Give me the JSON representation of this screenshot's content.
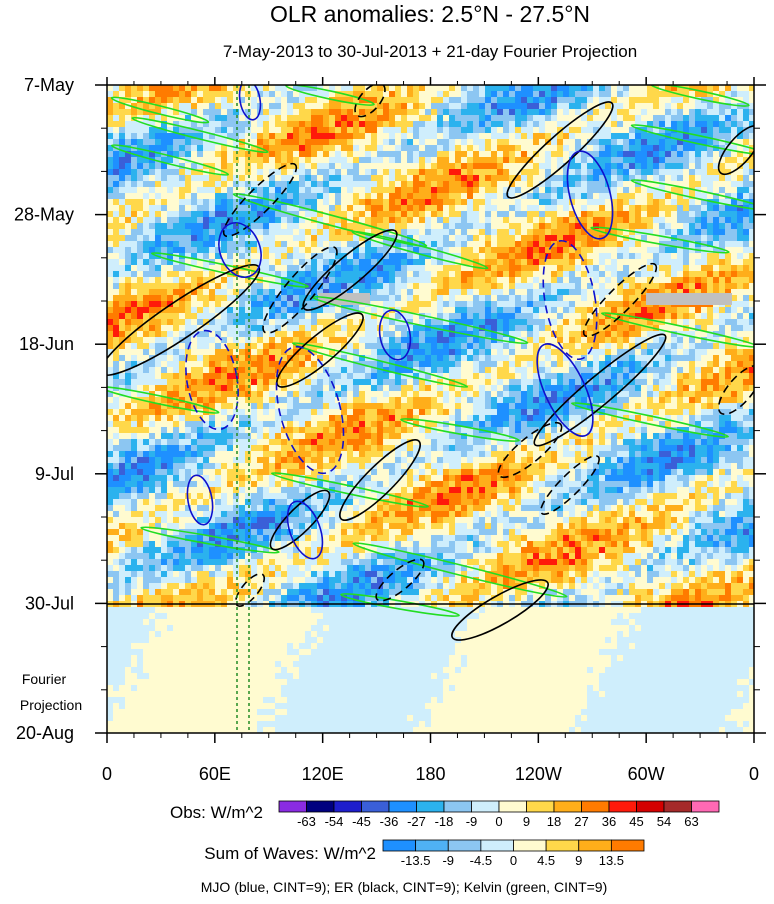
{
  "chart_data": {
    "type": "heatmap",
    "title": "OLR anomalies: 2.5°N - 27.5°N",
    "subtitle": "7-May-2013 to 30-Jul-2013 + 21-day Fourier Projection",
    "x_ticks": [
      "0",
      "60E",
      "120E",
      "180",
      "120W",
      "60W",
      "0"
    ],
    "x_range": [
      0,
      360
    ],
    "y_ticks": [
      "7-May",
      "28-May",
      "18-Jun",
      "9-Jul",
      "30-Jul",
      "20-Aug"
    ],
    "y_range_days": [
      0,
      105
    ],
    "obs_end_day": 84,
    "projection_label_lines": [
      "Fourier",
      "Projection"
    ],
    "obs_colorbar": {
      "label": "Obs: W/m^2",
      "levels": [
        "-63",
        "-54",
        "-45",
        "-36",
        "-27",
        "-18",
        "-9",
        "0",
        "9",
        "18",
        "27",
        "36",
        "45",
        "54",
        "63"
      ],
      "colors": [
        "#8a2be2",
        "#00007f",
        "#1e1ecc",
        "#3a5fd8",
        "#1e90ff",
        "#2bb2ee",
        "#8cc6f2",
        "#cfeefc",
        "#fffbd0",
        "#ffd84a",
        "#ffae1a",
        "#ff7b00",
        "#ff1a0a",
        "#d40000",
        "#a52a2a",
        "#ff69b4"
      ]
    },
    "waves_colorbar": {
      "label": "Sum of Waves: W/m^2",
      "levels": [
        "-13.5",
        "-9",
        "-4.5",
        "0",
        "4.5",
        "9",
        "13.5"
      ],
      "colors": [
        "#1e90ff",
        "#4fb1f5",
        "#8cc6f2",
        "#cfeefc",
        "#fffbd0",
        "#ffd84a",
        "#ffae1a",
        "#ff7b00"
      ]
    },
    "legend_note": "MJO (blue, CINT=9); ER (black, CINT=9); Kelvin (green, CINT=9)",
    "series": [
      {
        "name": "MJO",
        "color": "#1010cc"
      },
      {
        "name": "ER",
        "color": "#000000"
      },
      {
        "name": "Kelvin",
        "color": "#22dd22"
      }
    ]
  }
}
